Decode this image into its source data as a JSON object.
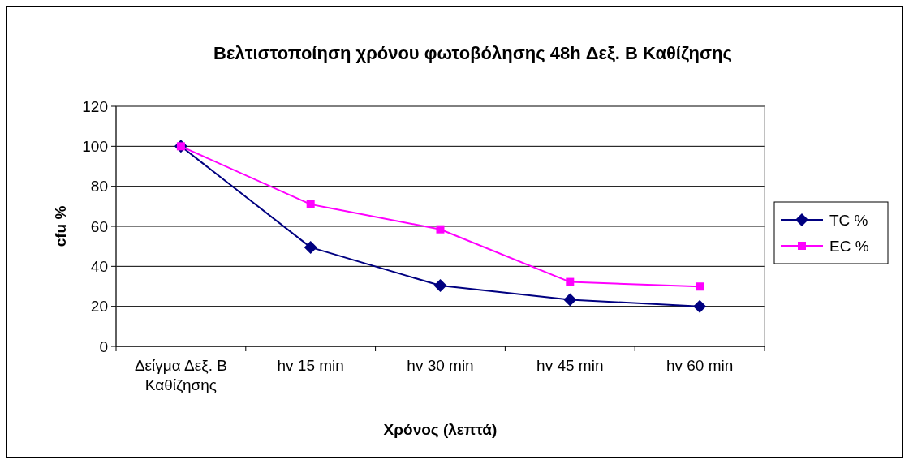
{
  "chart_data": {
    "type": "line",
    "title": "Βελτιστοποίηση χρόνου φωτοβόλησης 48h Δεξ. Β Καθίζησης",
    "xlabel": "Χρόνος (λεπτά)",
    "ylabel": "cfu %",
    "categories": [
      "Δείγμα Δεξ. Β Καθίζησης",
      "hv 15 min",
      "hv 30 min",
      "hv 45 min",
      "hv 60 min"
    ],
    "series": [
      {
        "name": "TC %",
        "color": "#000080",
        "marker": "diamond",
        "values": [
          100,
          49.5,
          30.4,
          23.3,
          20
        ]
      },
      {
        "name": "EC %",
        "color": "#ff00ff",
        "marker": "square",
        "values": [
          100,
          71,
          58.5,
          32.2,
          29.9
        ]
      }
    ],
    "ylim": [
      0,
      120
    ],
    "yticks": [
      0,
      20,
      40,
      60,
      80,
      100,
      120
    ],
    "grid": "y",
    "legend": "right"
  }
}
